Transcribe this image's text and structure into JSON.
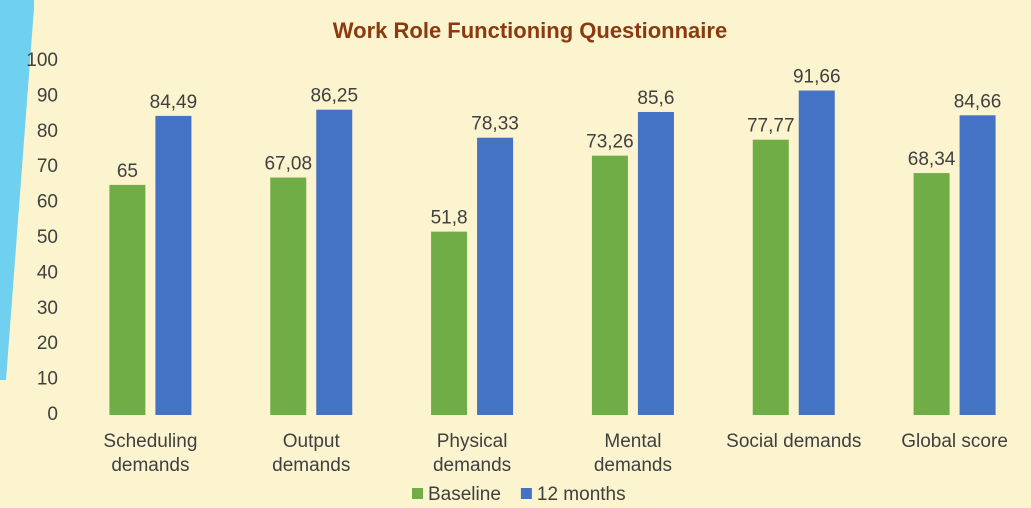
{
  "chart_data": {
    "type": "bar",
    "title": "Work Role Functioning Questionnaire",
    "categories": [
      "Scheduling\ndemands",
      "Output\ndemands",
      "Physical\ndemands",
      "Mental\ndemands",
      "Social demands",
      "Global score"
    ],
    "series": [
      {
        "name": "Baseline",
        "color": "#70ad47",
        "values": [
          65,
          67.08,
          51.8,
          73.26,
          77.77,
          68.34
        ],
        "value_labels": [
          "65",
          "67,08",
          "51,8",
          "73,26",
          "77,77",
          "68,34"
        ]
      },
      {
        "name": "12 months",
        "color": "#4472c4",
        "values": [
          84.49,
          86.25,
          78.33,
          85.6,
          91.66,
          84.66
        ],
        "value_labels": [
          "84,49",
          "86,25",
          "78,33",
          "85,6",
          "91,66",
          "84,66"
        ]
      }
    ],
    "ylim": [
      0,
      100
    ],
    "yticks": [
      0,
      10,
      20,
      30,
      40,
      50,
      60,
      70,
      80,
      90,
      100
    ],
    "grid": false,
    "legend": "bottom"
  }
}
